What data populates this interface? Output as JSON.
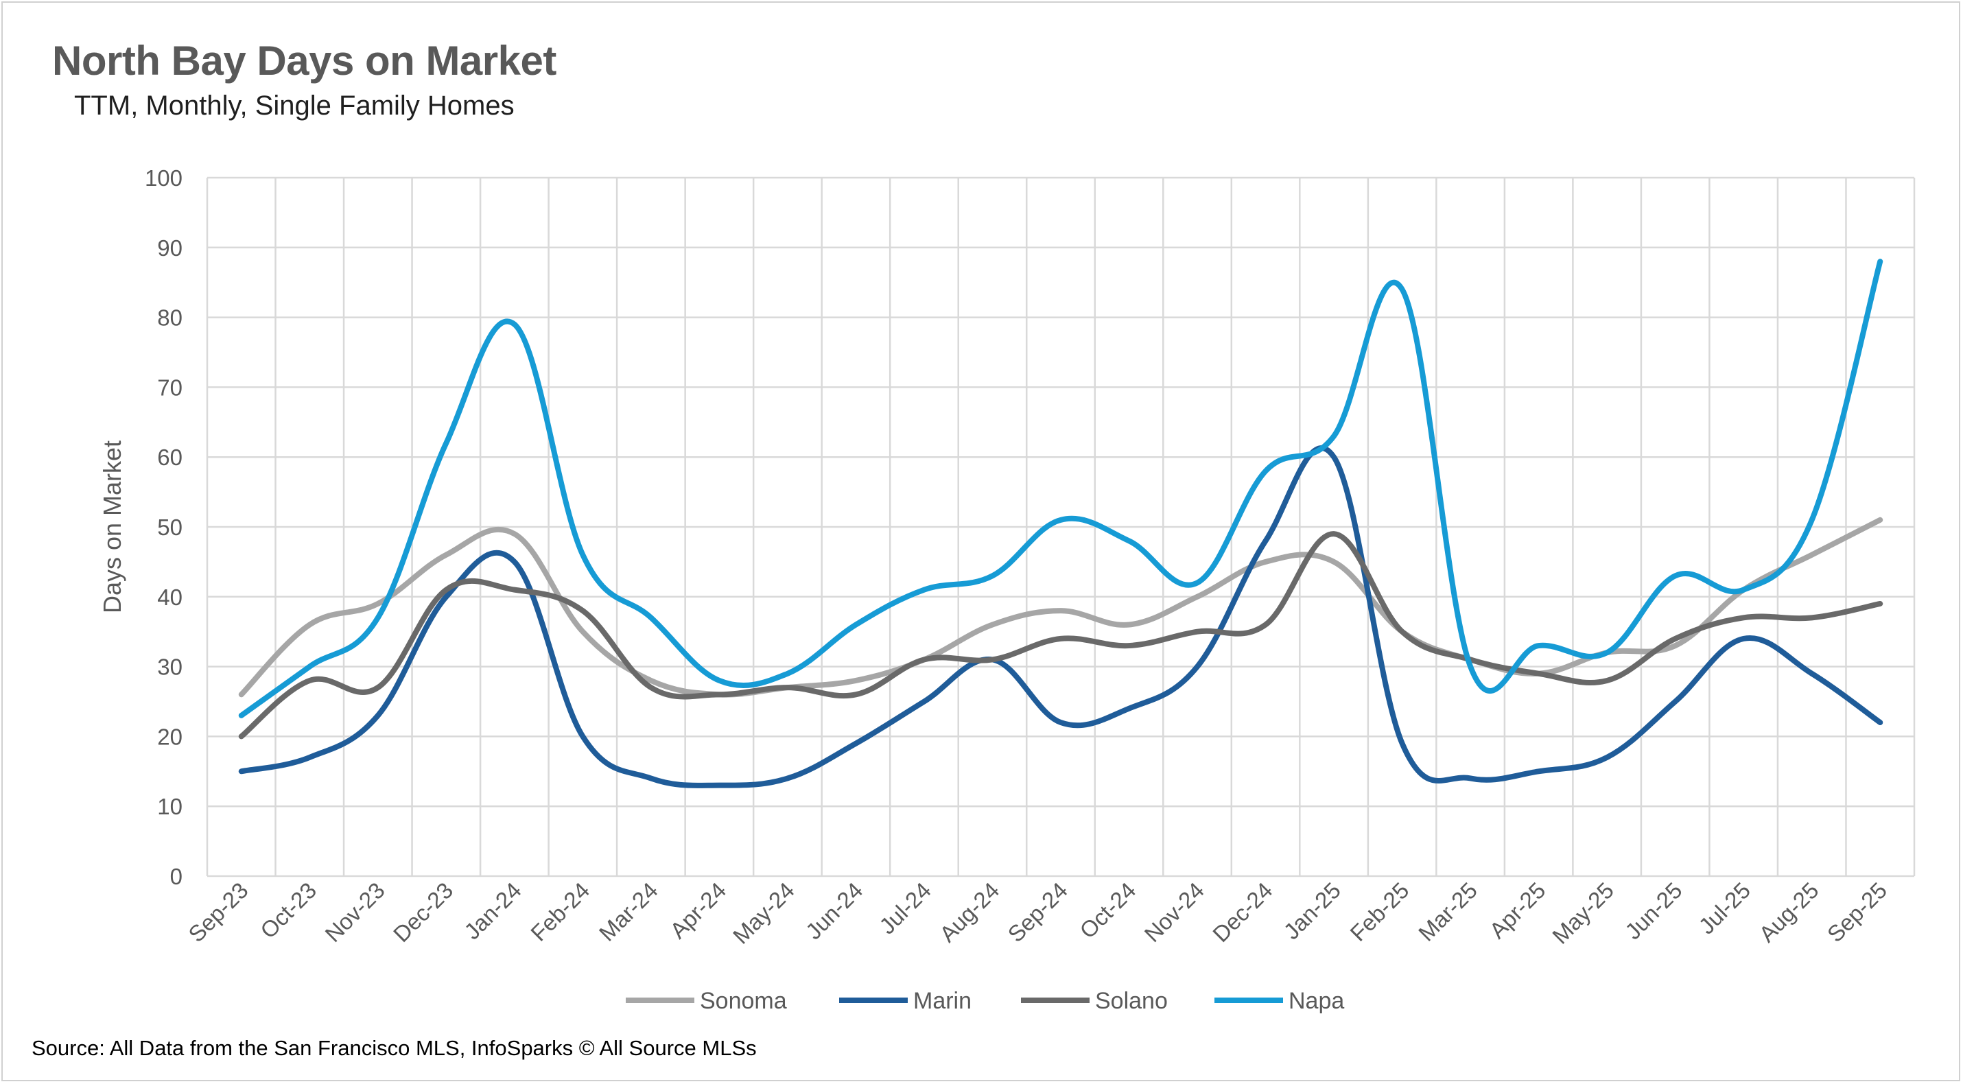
{
  "chart_data": {
    "type": "line",
    "title": "North Bay Days on Market",
    "subtitle": "TTM, Monthly, Single Family Homes",
    "ylabel": "Days on Market",
    "xlabel": "",
    "ylim": [
      0,
      100
    ],
    "yticks": [
      0,
      10,
      20,
      30,
      40,
      50,
      60,
      70,
      80,
      90,
      100
    ],
    "grid": true,
    "legend_position": "bottom",
    "categories": [
      "Sep-23",
      "Oct-23",
      "Nov-23",
      "Dec-23",
      "Jan-24",
      "Feb-24",
      "Mar-24",
      "Apr-24",
      "May-24",
      "Jun-24",
      "Jul-24",
      "Aug-24",
      "Sep-24",
      "Oct-24",
      "Nov-24",
      "Dec-24",
      "Jan-25",
      "Feb-25",
      "Mar-25",
      "Apr-25",
      "May-25",
      "Jun-25",
      "Jul-25",
      "Aug-25",
      "Sep-25"
    ],
    "series": [
      {
        "name": "Sonoma",
        "color": "#a6a6a6",
        "values": [
          26,
          36,
          39,
          46,
          49,
          35,
          28,
          26,
          27,
          28,
          31,
          36,
          38,
          36,
          40,
          45,
          45,
          35,
          31,
          29,
          32,
          33,
          41,
          46,
          51
        ]
      },
      {
        "name": "Marin",
        "color": "#1f5c99",
        "values": [
          15,
          17,
          23,
          40,
          45,
          20,
          14,
          13,
          14,
          19,
          25,
          31,
          22,
          24,
          30,
          48,
          60,
          19,
          14,
          15,
          17,
          25,
          34,
          29,
          22
        ]
      },
      {
        "name": "Solano",
        "color": "#696969",
        "values": [
          20,
          28,
          27,
          41,
          41,
          38,
          27,
          26,
          27,
          26,
          31,
          31,
          34,
          33,
          35,
          36,
          49,
          35,
          31,
          29,
          28,
          34,
          37,
          37,
          39
        ]
      },
      {
        "name": "Napa",
        "color": "#169bd5",
        "values": [
          23,
          30,
          37,
          62,
          79,
          46,
          37,
          28,
          29,
          36,
          41,
          43,
          51,
          48,
          42,
          58,
          63,
          84,
          30,
          33,
          32,
          43,
          41,
          51,
          88
        ]
      }
    ]
  },
  "source": "Source: All Data from the San Francisco MLS, InfoSparks © All Source MLSs"
}
